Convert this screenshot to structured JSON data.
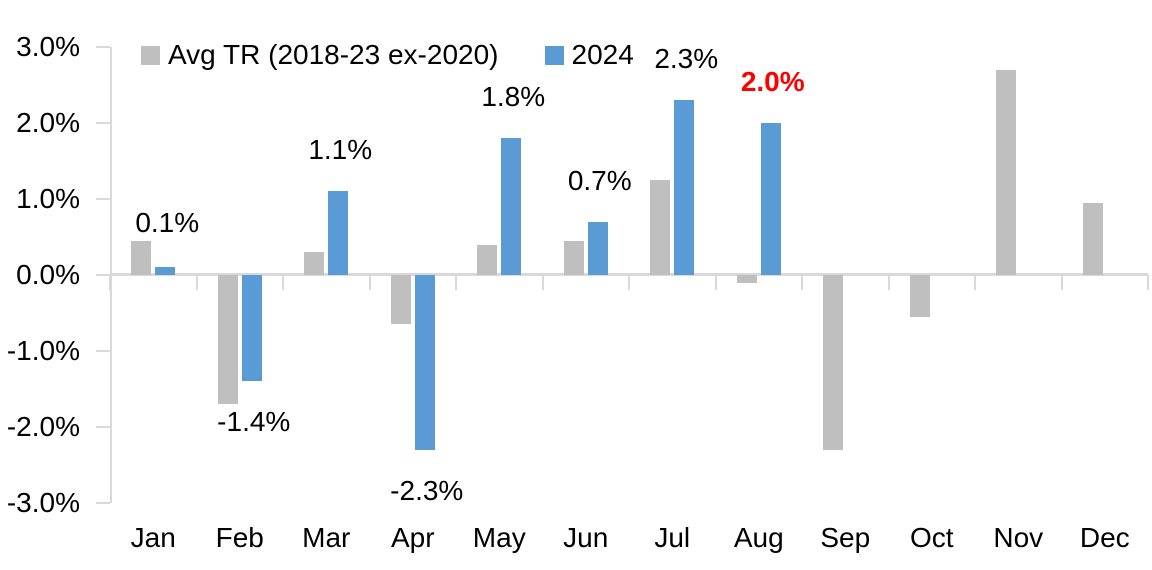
{
  "chart_data": {
    "type": "bar",
    "title": "",
    "categories": [
      "Jan",
      "Feb",
      "Mar",
      "Apr",
      "May",
      "Jun",
      "Jul",
      "Aug",
      "Sep",
      "Oct",
      "Nov",
      "Dec"
    ],
    "series": [
      {
        "name": "Avg TR (2018-23 ex-2020)",
        "color": "#BFBFBF",
        "values": [
          0.45,
          -1.7,
          0.3,
          -0.65,
          0.4,
          0.45,
          1.25,
          -0.1,
          -2.3,
          -0.55,
          2.7,
          0.95
        ]
      },
      {
        "name": "2024",
        "color": "#5B9BD5",
        "values": [
          0.1,
          -1.4,
          1.1,
          -2.3,
          1.8,
          0.7,
          2.3,
          2.0,
          null,
          null,
          null,
          null
        ]
      }
    ],
    "data_labels": [
      {
        "category": "Jan",
        "text": "0.1%",
        "color": "#000000",
        "bold": false
      },
      {
        "category": "Feb",
        "text": "-1.4%",
        "color": "#000000",
        "bold": false
      },
      {
        "category": "Mar",
        "text": "1.1%",
        "color": "#000000",
        "bold": false
      },
      {
        "category": "Apr",
        "text": "-2.3%",
        "color": "#000000",
        "bold": false
      },
      {
        "category": "May",
        "text": "1.8%",
        "color": "#000000",
        "bold": false
      },
      {
        "category": "Jun",
        "text": "0.7%",
        "color": "#000000",
        "bold": false
      },
      {
        "category": "Jul",
        "text": "2.3%",
        "color": "#000000",
        "bold": false
      },
      {
        "category": "Aug",
        "text": "2.0%",
        "color": "#FF0000",
        "bold": true
      }
    ],
    "y_axis": {
      "min": -3.0,
      "max": 3.0,
      "ticks": [
        {
          "label": "3.0%",
          "value": 3.0
        },
        {
          "label": "2.0%",
          "value": 2.0
        },
        {
          "label": "1.0%",
          "value": 1.0
        },
        {
          "label": "0.0%",
          "value": 0.0
        },
        {
          "label": "-1.0%",
          "value": -1.0
        },
        {
          "label": "-2.0%",
          "value": -2.0
        },
        {
          "label": "-3.0%",
          "value": -3.0
        }
      ]
    },
    "legend_position": "top",
    "grid": false,
    "axis_color": "#D9D9D9",
    "background": "#FFFFFF"
  }
}
